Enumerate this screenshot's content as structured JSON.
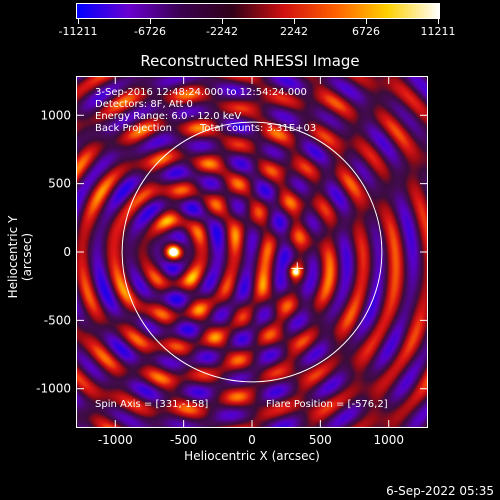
{
  "colorbar": {
    "labels": [
      "-11211",
      "-6726",
      "-2242",
      "2242",
      "6726",
      "11211"
    ],
    "stops": [
      "#0000ff",
      "#6a00d0",
      "#3a0050",
      "#300018",
      "#d01010",
      "#ff6000",
      "#ffd000",
      "#ffffff"
    ]
  },
  "title": "Reconstructed RHESSI Image",
  "annotations": {
    "time_range": "3-Sep-2016 12:48:24.000 to 12:54:24.000",
    "detectors": "Detectors: 8F, Att 0",
    "energy": "Energy Range: 6.0 - 12.0 keV",
    "method": "Back Projection",
    "counts": "Total counts: 3.31E+03",
    "spin_axis": "Spin Axis = [331,-158]",
    "flare_position": "Flare Position = [-576,2]"
  },
  "chart_data": {
    "type": "heatmap",
    "title": "Reconstructed RHESSI Image",
    "xlabel": "Heliocentric X (arcsec)",
    "ylabel": "Heliocentric Y (arcsec)",
    "xlim": [
      -1280,
      1280
    ],
    "ylim": [
      -1280,
      1280
    ],
    "xticks": [
      -1000,
      -500,
      0,
      500,
      1000
    ],
    "yticks": [
      -1000,
      -500,
      0,
      500,
      1000
    ],
    "xtick_labels": [
      "-1000",
      "-500",
      "0",
      "500",
      "1000"
    ],
    "ytick_labels": [
      "-1000",
      "-500",
      "0",
      "500",
      "1000"
    ],
    "color_range": [
      -11211,
      11211
    ],
    "sources": [
      {
        "x": -576,
        "y": 2,
        "intensity": 11211
      },
      {
        "x": 310,
        "y": -140,
        "intensity": 6500
      }
    ],
    "solar_disk": {
      "center_x": 0,
      "center_y": 0,
      "radius": 950
    },
    "marker": {
      "x": 331,
      "y": -120
    }
  },
  "timestamp": "6-Sep-2022 05:35"
}
